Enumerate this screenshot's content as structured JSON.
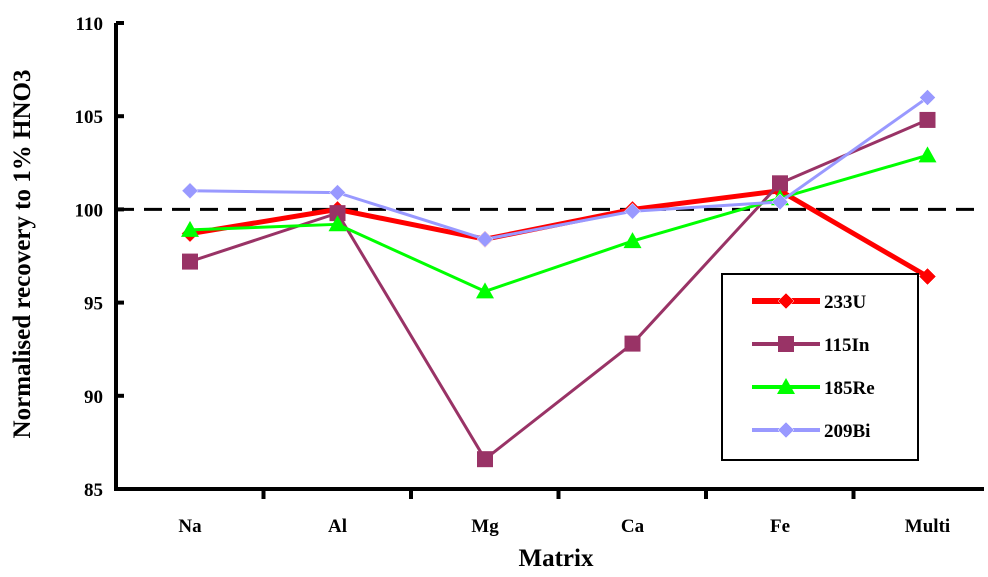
{
  "chart_data": {
    "type": "line",
    "xlabel": "Matrix",
    "ylabel": "Normalised recovery to 1% HNO3",
    "categories": [
      "Na",
      "Al",
      "Mg",
      "Ca",
      "Fe",
      "Multi"
    ],
    "ylim": [
      85,
      110
    ],
    "yticks": [
      85,
      90,
      95,
      100,
      105,
      110
    ],
    "reference_line": {
      "value": 100,
      "style": "dashed",
      "color": "#000000"
    },
    "grid": false,
    "legend_position": "right",
    "series": [
      {
        "name": "233U",
        "values": [
          98.7,
          100.0,
          98.4,
          100.0,
          101.0,
          96.4
        ],
        "color": "#ff0000",
        "marker": "diamond",
        "marker_fill": "#ff0000",
        "line_width": 5
      },
      {
        "name": "115In",
        "values": [
          97.2,
          99.8,
          86.6,
          92.8,
          101.4,
          104.8
        ],
        "color": "#993366",
        "marker": "square",
        "marker_fill": "#993366",
        "line_width": 3
      },
      {
        "name": "185Re",
        "values": [
          98.9,
          99.2,
          95.6,
          98.3,
          100.6,
          102.9
        ],
        "color": "#00ff00",
        "marker": "triangle",
        "marker_fill": "#00ff00",
        "line_width": 3
      },
      {
        "name": "209Bi",
        "values": [
          101.0,
          100.9,
          98.4,
          99.9,
          100.4,
          106.0
        ],
        "color": "#9999ff",
        "marker": "diamond",
        "marker_fill": "#9999ff",
        "line_width": 3
      }
    ]
  }
}
